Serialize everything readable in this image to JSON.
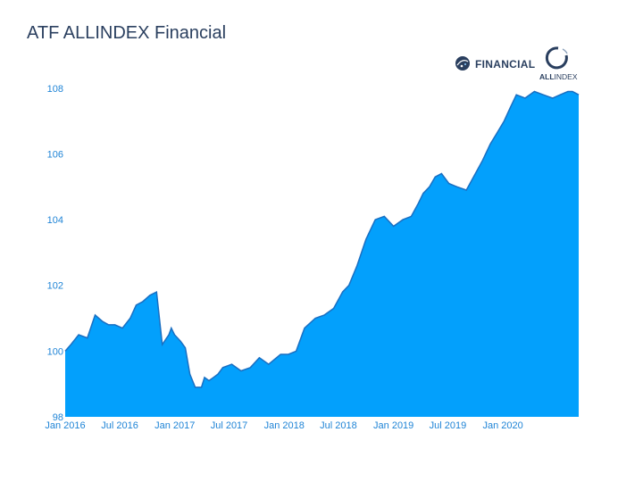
{
  "chart_data": {
    "type": "area",
    "title": "ATF ALLINDEX Financial",
    "xlabel": "",
    "ylabel": "",
    "x_range": [
      "2016-01-01",
      "2020-09-10"
    ],
    "ylim": [
      98,
      109
    ],
    "y_ticks": [
      98,
      100,
      102,
      104,
      106,
      108
    ],
    "x_ticks": [
      {
        "date": "2016-01-01",
        "label": "Jan 2016"
      },
      {
        "date": "2016-07-01",
        "label": "Jul 2016"
      },
      {
        "date": "2017-01-01",
        "label": "Jan 2017"
      },
      {
        "date": "2017-07-01",
        "label": "Jul 2017"
      },
      {
        "date": "2018-01-01",
        "label": "Jan 2018"
      },
      {
        "date": "2018-07-01",
        "label": "Jul 2018"
      },
      {
        "date": "2019-01-01",
        "label": "Jan 2019"
      },
      {
        "date": "2019-07-01",
        "label": "Jul 2019"
      },
      {
        "date": "2020-01-01",
        "label": "Jan 2020"
      }
    ],
    "fill_color": "#03a0fc",
    "line_color": "#1a6fc2",
    "grid": false,
    "series": [
      {
        "x": [
          "2016-01-01",
          "2016-01-20",
          "2016-02-15",
          "2016-03-15",
          "2016-04-10",
          "2016-05-05",
          "2016-05-25",
          "2016-06-15",
          "2016-07-10",
          "2016-08-05",
          "2016-08-25",
          "2016-09-15",
          "2016-10-10",
          "2016-11-01",
          "2016-11-20",
          "2016-12-05",
          "2016-12-12",
          "2016-12-20",
          "2016-12-31",
          "2017-01-20",
          "2017-02-05",
          "2017-02-20",
          "2017-03-10",
          "2017-03-31",
          "2017-04-10",
          "2017-04-25",
          "2017-05-10",
          "2017-05-25",
          "2017-06-10",
          "2017-07-10",
          "2017-08-10",
          "2017-09-10",
          "2017-10-10",
          "2017-11-10",
          "2017-12-20",
          "2018-01-15",
          "2018-02-10",
          "2018-03-10",
          "2018-04-15",
          "2018-05-15",
          "2018-06-15",
          "2018-07-15",
          "2018-08-05",
          "2018-09-01",
          "2018-10-01",
          "2018-11-01",
          "2018-12-01",
          "2019-01-01",
          "2019-02-01",
          "2019-03-01",
          "2019-03-25",
          "2019-04-10",
          "2019-05-01",
          "2019-05-20",
          "2019-06-10",
          "2019-07-05",
          "2019-08-01",
          "2019-09-01",
          "2019-10-01",
          "2019-10-25",
          "2019-11-20",
          "2019-12-10",
          "2020-01-05",
          "2020-01-25",
          "2020-02-15",
          "2020-03-15",
          "2020-04-15",
          "2020-05-15",
          "2020-06-15",
          "2020-07-10",
          "2020-08-05",
          "2020-08-20",
          "2020-09-10"
        ],
        "y": [
          100.0,
          100.2,
          100.5,
          100.4,
          101.1,
          100.9,
          100.8,
          100.8,
          100.7,
          101.0,
          101.4,
          101.5,
          101.7,
          101.8,
          100.2,
          100.4,
          100.5,
          100.7,
          100.5,
          100.3,
          100.1,
          99.3,
          98.9,
          98.9,
          99.2,
          99.1,
          99.2,
          99.3,
          99.5,
          99.6,
          99.4,
          99.5,
          99.8,
          99.6,
          99.9,
          99.9,
          100.0,
          100.7,
          101.0,
          101.1,
          101.3,
          101.8,
          102.0,
          102.6,
          103.4,
          104.0,
          104.1,
          103.8,
          104.0,
          104.1,
          104.5,
          104.8,
          105.0,
          105.3,
          105.4,
          105.1,
          105.0,
          104.9,
          105.4,
          105.8,
          106.3,
          106.6,
          107.0,
          107.4,
          107.8,
          107.7,
          107.9,
          107.8,
          107.7,
          107.8,
          107.9,
          107.9,
          107.8
        ]
      }
    ]
  },
  "logos": {
    "financial": {
      "text": "FINANCIAL",
      "icon": "financial-globe-icon",
      "color": "#2a3f5f",
      "accent": "#1f84d6"
    },
    "allindex": {
      "bold": "ALL",
      "rest": "INDEX",
      "icon": "allindex-ring-icon",
      "color": "#2a3f5f"
    }
  }
}
